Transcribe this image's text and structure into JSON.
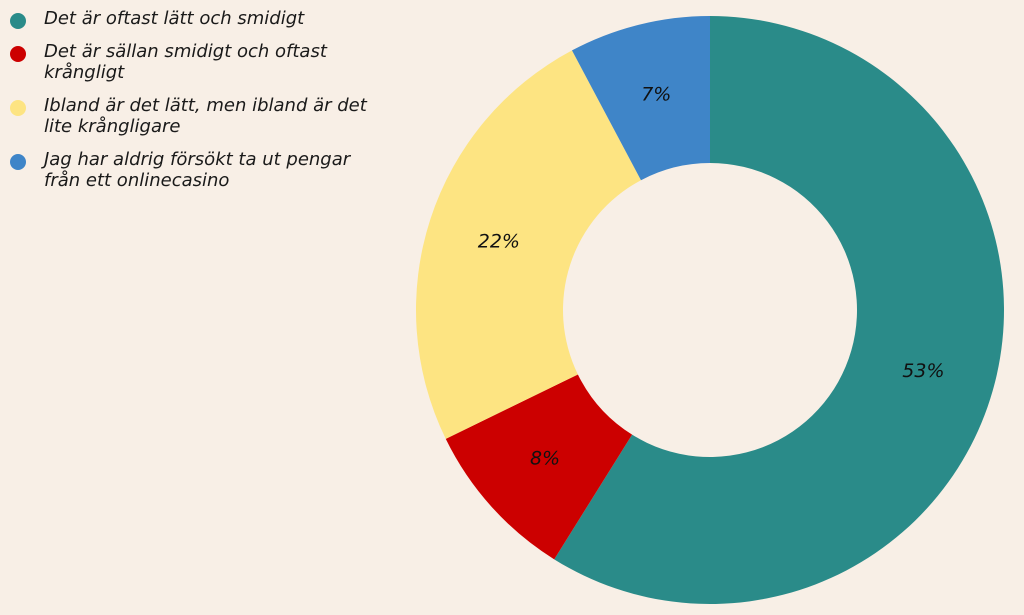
{
  "chart_data": {
    "type": "pie",
    "variant": "donut",
    "categories": [
      "Det är oftast lätt och smidigt",
      "Det är sällan smidigt och oftast krångligt",
      "Ibland är det lätt, men ibland är det lite krångligare",
      "Jag har aldrig försökt ta ut pengar från ett onlinecasino"
    ],
    "values": [
      53,
      8,
      22,
      7
    ],
    "value_labels": [
      "53%",
      "8%",
      "22%",
      "7%"
    ],
    "colors": [
      "#2a8b89",
      "#cc0000",
      "#fde482",
      "#3f85c8"
    ],
    "legend": "top-left",
    "start_angle": "12 o'clock",
    "direction": "clockwise"
  }
}
